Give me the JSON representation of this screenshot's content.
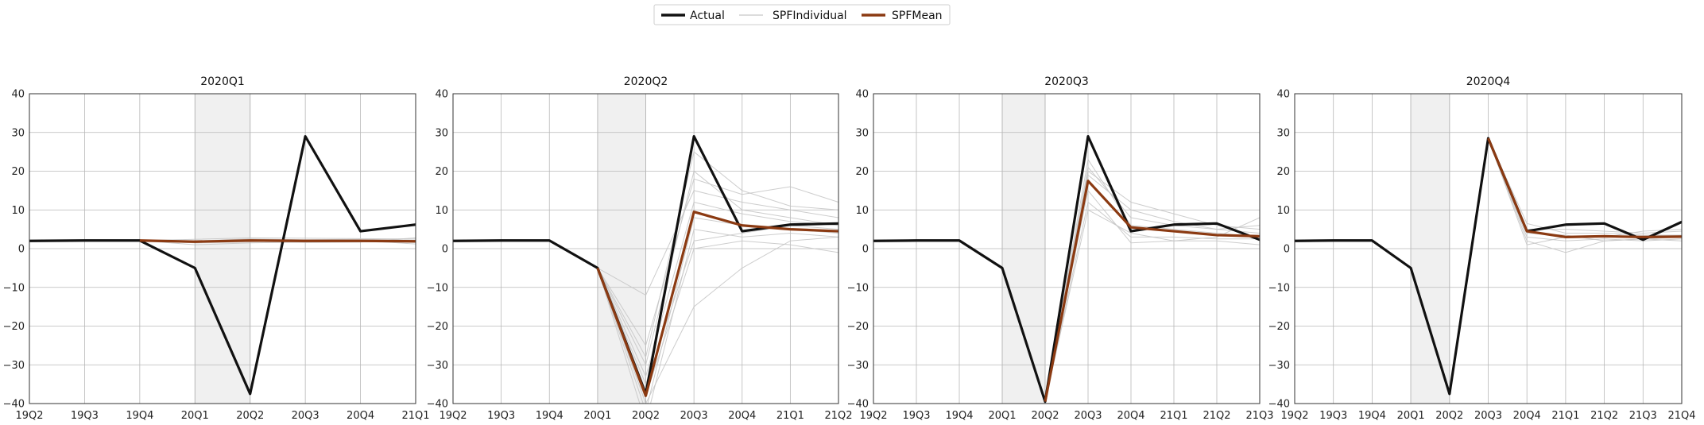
{
  "chart_data": {
    "type": "line",
    "legend": {
      "placement": "top-center",
      "entries": [
        {
          "name": "Actual",
          "color": "#111111"
        },
        {
          "name": "SPFIndividual",
          "color": "#c8c8c8"
        },
        {
          "name": "SPFMean",
          "color": "#8b3a12"
        }
      ]
    },
    "ylim": [
      -40,
      40
    ],
    "yticks": [
      40,
      30,
      20,
      10,
      0,
      -10,
      -20,
      -30,
      -40
    ],
    "grid": true,
    "panels": [
      {
        "title": "2020Q1",
        "categories": [
          "19Q2",
          "19Q3",
          "19Q4",
          "20Q1",
          "20Q2",
          "20Q3",
          "20Q4",
          "21Q1"
        ],
        "shaded": [
          "20Q1",
          "20Q2"
        ],
        "actual": [
          2.0,
          2.1,
          2.1,
          -5.0,
          -37.5,
          29.0,
          4.5,
          6.2
        ],
        "spf_mean": [
          null,
          null,
          2.1,
          1.8,
          2.1,
          2.0,
          2.0,
          1.9
        ],
        "spf_individual": [
          [
            null,
            null,
            2.1,
            1.0,
            1.5,
            1.7,
            1.8,
            1.6
          ],
          [
            null,
            null,
            2.1,
            2.4,
            2.8,
            2.7,
            2.6,
            2.5
          ],
          [
            null,
            null,
            2.1,
            1.5,
            1.8,
            2.0,
            2.1,
            1.2
          ],
          [
            null,
            null,
            2.1,
            2.0,
            2.5,
            2.3,
            2.4,
            2.2
          ],
          [
            null,
            null,
            2.1,
            1.6,
            1.9,
            1.6,
            1.7,
            2.8
          ]
        ]
      },
      {
        "title": "2020Q2",
        "categories": [
          "19Q2",
          "19Q3",
          "19Q4",
          "20Q1",
          "20Q2",
          "20Q3",
          "20Q4",
          "21Q1",
          "21Q2"
        ],
        "shaded": [
          "20Q1",
          "20Q2"
        ],
        "actual": [
          2.0,
          2.1,
          2.1,
          -5.0,
          -37.5,
          29.0,
          4.5,
          6.2,
          6.5
        ],
        "spf_mean": [
          null,
          null,
          null,
          -5.0,
          -38.0,
          9.5,
          6.0,
          5.0,
          4.5
        ],
        "spf_individual": [
          [
            null,
            null,
            null,
            -5.0,
            -30.0,
            20.0,
            10.0,
            8.0,
            6.0
          ],
          [
            null,
            null,
            null,
            -5.0,
            -45.0,
            5.0,
            3.0,
            4.0,
            3.0
          ],
          [
            null,
            null,
            null,
            -5.0,
            -12.0,
            15.0,
            12.0,
            10.0,
            8.0
          ],
          [
            null,
            null,
            null,
            -5.0,
            -35.0,
            2.0,
            4.0,
            6.0,
            5.0
          ],
          [
            null,
            null,
            null,
            -5.0,
            -40.0,
            -15.0,
            -5.0,
            2.0,
            3.0
          ],
          [
            null,
            null,
            null,
            -5.0,
            -25.0,
            18.0,
            14.0,
            16.0,
            12.0
          ],
          [
            null,
            null,
            null,
            -5.0,
            -42.0,
            8.0,
            6.0,
            5.0,
            4.0
          ],
          [
            null,
            null,
            null,
            -5.0,
            -33.0,
            12.0,
            9.0,
            7.0,
            6.0
          ],
          [
            null,
            null,
            null,
            -5.0,
            -38.0,
            0.0,
            2.0,
            1.0,
            -1.0
          ],
          [
            null,
            null,
            null,
            -5.0,
            -28.0,
            25.0,
            15.0,
            11.0,
            10.0
          ]
        ]
      },
      {
        "title": "2020Q3",
        "categories": [
          "19Q2",
          "19Q3",
          "19Q4",
          "20Q1",
          "20Q2",
          "20Q3",
          "20Q4",
          "21Q1",
          "21Q2",
          "21Q3"
        ],
        "shaded": [
          "20Q1",
          "20Q2"
        ],
        "actual": [
          2.0,
          2.1,
          2.1,
          -5.0,
          -39.5,
          29.0,
          4.5,
          6.2,
          6.5,
          2.3
        ],
        "spf_mean": [
          null,
          null,
          null,
          null,
          -39.5,
          17.5,
          5.5,
          4.5,
          3.5,
          3.2
        ],
        "spf_individual": [
          [
            null,
            null,
            null,
            null,
            -39.5,
            21.0,
            8.0,
            6.0,
            5.0,
            4.0
          ],
          [
            null,
            null,
            null,
            null,
            -39.5,
            12.0,
            3.0,
            3.0,
            2.5,
            2.5
          ],
          [
            null,
            null,
            null,
            null,
            -39.5,
            19.0,
            10.0,
            7.0,
            5.0,
            6.0
          ],
          [
            null,
            null,
            null,
            null,
            -39.5,
            15.0,
            1.5,
            2.0,
            2.0,
            1.0
          ],
          [
            null,
            null,
            null,
            null,
            -39.5,
            23.0,
            6.0,
            5.0,
            4.0,
            3.0
          ],
          [
            null,
            null,
            null,
            null,
            -39.5,
            10.0,
            4.0,
            2.0,
            3.0,
            8.0
          ],
          [
            null,
            null,
            null,
            null,
            -39.5,
            20.0,
            12.0,
            9.0,
            6.0,
            5.0
          ]
        ]
      },
      {
        "title": "2020Q4",
        "categories": [
          "19Q2",
          "19Q3",
          "19Q4",
          "20Q1",
          "20Q2",
          "20Q3",
          "20Q4",
          "21Q1",
          "21Q2",
          "21Q3",
          "21Q4"
        ],
        "shaded": [
          "20Q1",
          "20Q2"
        ],
        "actual": [
          2.0,
          2.1,
          2.1,
          -5.0,
          -37.5,
          28.5,
          4.5,
          6.2,
          6.5,
          2.3,
          6.9
        ],
        "spf_mean": [
          null,
          null,
          null,
          null,
          null,
          28.5,
          4.5,
          3.0,
          3.2,
          3.0,
          3.1
        ],
        "spf_individual": [
          [
            null,
            null,
            null,
            null,
            null,
            28.5,
            6.5,
            4.0,
            4.0,
            3.5,
            3.5
          ],
          [
            null,
            null,
            null,
            null,
            null,
            28.5,
            2.0,
            -1.0,
            2.0,
            2.5,
            2.0
          ],
          [
            null,
            null,
            null,
            null,
            null,
            28.5,
            5.0,
            5.0,
            4.5,
            4.0,
            4.5
          ],
          [
            null,
            null,
            null,
            null,
            null,
            28.5,
            3.0,
            2.0,
            2.5,
            2.0,
            2.5
          ],
          [
            null,
            null,
            null,
            null,
            null,
            28.5,
            1.0,
            3.0,
            3.0,
            4.5,
            5.0
          ],
          [
            null,
            null,
            null,
            null,
            null,
            28.5,
            4.0,
            3.5,
            2.0,
            2.5,
            3.0
          ]
        ]
      }
    ]
  }
}
